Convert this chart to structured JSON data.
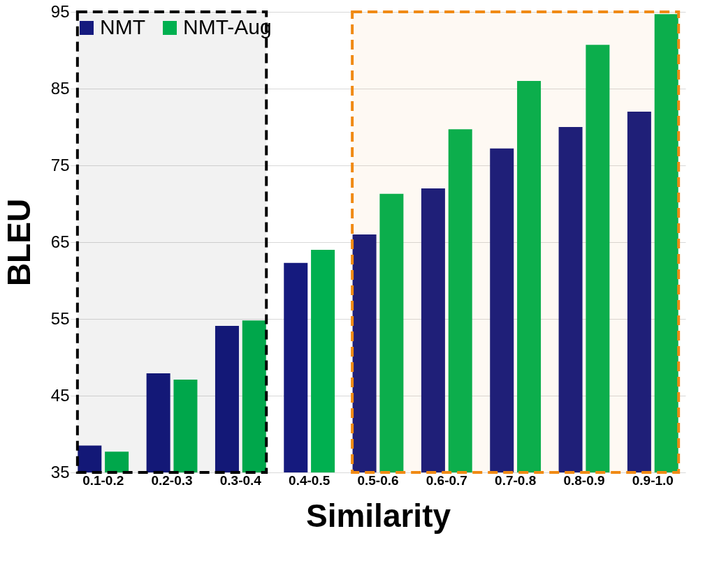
{
  "chart_data": {
    "type": "bar",
    "xlabel": "Similarity",
    "ylabel": "BLEU",
    "categories": [
      "0.1-0.2",
      "0.2-0.3",
      "0.3-0.4",
      "0.4-0.5",
      "0.5-0.6",
      "0.6-0.7",
      "0.7-0.8",
      "0.8-0.9",
      "0.9-1.0"
    ],
    "series": [
      {
        "name": "NMT",
        "color": "#151a7e",
        "values": [
          38.5,
          47.9,
          54.1,
          62.3,
          66.0,
          72.0,
          77.2,
          80.0,
          82.0
        ]
      },
      {
        "name": "NMT-Aug",
        "color": "#00b050",
        "values": [
          37.7,
          47.1,
          54.8,
          64.0,
          71.3,
          79.7,
          86.0,
          90.7,
          94.7
        ]
      }
    ],
    "ylim": [
      35,
      95
    ],
    "yticks": [
      35,
      45,
      55,
      65,
      75,
      85,
      95
    ],
    "grid": "y",
    "legend": "top left",
    "bands": [
      {
        "axis": "x",
        "from": "0.1-0.2",
        "to": "0.3-0.4",
        "color": "#000000"
      },
      {
        "axis": "x",
        "from": "0.5-0.6",
        "to": "0.9-1.0",
        "color": "#f08a14"
      }
    ]
  }
}
